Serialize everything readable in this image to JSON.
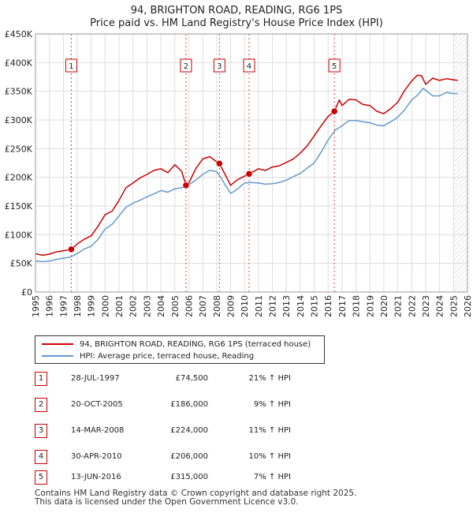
{
  "title_line1": "94, BRIGHTON ROAD, READING, RG6 1PS",
  "title_line2": "Price paid vs. HM Land Registry's House Price Index (HPI)",
  "chart_data": {
    "type": "line",
    "xlim": [
      1995,
      2026
    ],
    "ylim": [
      0,
      450000
    ],
    "y_ticks": [
      {
        "value": 0,
        "label": "£0"
      },
      {
        "value": 50000,
        "label": "£50K"
      },
      {
        "value": 100000,
        "label": "£100K"
      },
      {
        "value": 150000,
        "label": "£150K"
      },
      {
        "value": 200000,
        "label": "£200K"
      },
      {
        "value": 250000,
        "label": "£250K"
      },
      {
        "value": 300000,
        "label": "£300K"
      },
      {
        "value": 350000,
        "label": "£350K"
      },
      {
        "value": 400000,
        "label": "£400K"
      },
      {
        "value": 450000,
        "label": "£450K"
      }
    ],
    "x_ticks": [
      "1995",
      "1996",
      "1997",
      "1998",
      "1999",
      "2000",
      "2001",
      "2002",
      "2003",
      "2004",
      "2005",
      "2006",
      "2007",
      "2008",
      "2009",
      "2010",
      "2011",
      "2012",
      "2013",
      "2014",
      "2015",
      "2016",
      "2017",
      "2018",
      "2019",
      "2020",
      "2021",
      "2022",
      "2023",
      "2024",
      "2025",
      "2026"
    ],
    "grid": true,
    "series": [
      {
        "name": "94, BRIGHTON ROAD, READING, RG6 1PS (terraced house)",
        "color": "#cc0000",
        "x": [
          1995,
          1995.5,
          1996,
          1996.5,
          1997,
          1997.58,
          1998,
          1998.5,
          1999,
          1999.5,
          2000,
          2000.5,
          2001,
          2001.5,
          2002,
          2002.5,
          2003,
          2003.5,
          2004,
          2004.5,
          2005,
          2005.5,
          2005.8,
          2006,
          2006.5,
          2007,
          2007.5,
          2008,
          2008.2,
          2008.5,
          2009,
          2009.5,
          2010,
          2010.33,
          2010.8,
          2011,
          2011.5,
          2012,
          2012.5,
          2013,
          2013.5,
          2014,
          2014.5,
          2015,
          2015.5,
          2016,
          2016.45,
          2016.8,
          2017,
          2017.5,
          2018,
          2018.5,
          2019,
          2019.5,
          2020,
          2020.5,
          2021,
          2021.5,
          2022,
          2022.4,
          2022.7,
          2023,
          2023.5,
          2024,
          2024.5,
          2025,
          2025.3
        ],
        "values": [
          67000,
          64000,
          66000,
          70000,
          72000,
          74500,
          84000,
          92000,
          98000,
          115000,
          135000,
          141000,
          160000,
          182000,
          190000,
          199000,
          205000,
          212000,
          215000,
          208000,
          222000,
          210000,
          186000,
          190000,
          215000,
          232000,
          236000,
          227000,
          224000,
          210000,
          186000,
          196000,
          202000,
          206000,
          212000,
          215000,
          212000,
          218000,
          220000,
          226000,
          232000,
          242000,
          255000,
          272000,
          290000,
          306000,
          315000,
          335000,
          325000,
          336000,
          335000,
          327000,
          325000,
          315000,
          311000,
          320000,
          331000,
          352000,
          368000,
          378000,
          377000,
          362000,
          373000,
          369000,
          372000,
          370000,
          369000
        ]
      },
      {
        "name": "HPI: Average price, terraced house, Reading",
        "color": "#6699cc",
        "x": [
          1995,
          1995.5,
          1996,
          1996.5,
          1997,
          1997.5,
          1998,
          1998.5,
          1999,
          1999.5,
          2000,
          2000.5,
          2001,
          2001.5,
          2002,
          2002.5,
          2003,
          2003.5,
          2004,
          2004.5,
          2005,
          2005.5,
          2006,
          2006.5,
          2007,
          2007.5,
          2008,
          2008.3,
          2008.7,
          2009,
          2009.3,
          2009.7,
          2010,
          2010.5,
          2011,
          2011.5,
          2012,
          2012.5,
          2013,
          2013.5,
          2014,
          2014.5,
          2015,
          2015.5,
          2016,
          2016.5,
          2017,
          2017.5,
          2018,
          2018.5,
          2019,
          2019.5,
          2020,
          2020.5,
          2021,
          2021.5,
          2022,
          2022.5,
          2022.8,
          2023,
          2023.5,
          2024,
          2024.5,
          2025,
          2025.3
        ],
        "values": [
          54000,
          53000,
          54000,
          57000,
          59000,
          61000,
          67000,
          75000,
          80000,
          92000,
          110000,
          118000,
          133000,
          148000,
          155000,
          160000,
          166000,
          171000,
          177000,
          174000,
          180000,
          182000,
          187000,
          195000,
          205000,
          212000,
          210000,
          200000,
          183000,
          172000,
          176000,
          184000,
          190000,
          191000,
          190000,
          188000,
          189000,
          191000,
          195000,
          201000,
          207000,
          216000,
          225000,
          244000,
          265000,
          282000,
          290000,
          299000,
          299000,
          297000,
          295000,
          291000,
          290000,
          297000,
          305000,
          318000,
          335000,
          345000,
          355000,
          352000,
          342000,
          342000,
          348000,
          346000,
          346000
        ]
      }
    ],
    "sales": [
      {
        "num": "1",
        "date": "28-JUL-1997",
        "price": "£74,500",
        "pct": "21% ↑ HPI",
        "x": 1997.57,
        "value": 74500
      },
      {
        "num": "2",
        "date": "20-OCT-2005",
        "price": "£186,000",
        "pct": "9% ↑ HPI",
        "x": 2005.8,
        "value": 186000
      },
      {
        "num": "3",
        "date": "14-MAR-2008",
        "price": "£224,000",
        "pct": "11% ↑ HPI",
        "x": 2008.2,
        "value": 224000
      },
      {
        "num": "4",
        "date": "30-APR-2010",
        "price": "£206,000",
        "pct": "10% ↑ HPI",
        "x": 2010.33,
        "value": 206000
      },
      {
        "num": "5",
        "date": "13-JUN-2016",
        "price": "£315,000",
        "pct": "7% ↑ HPI",
        "x": 2016.45,
        "value": 315000
      }
    ],
    "forecast_from": 2025.0
  },
  "legend": {
    "property_label": "94, BRIGHTON ROAD, READING, RG6 1PS (terraced house)",
    "hpi_label": "HPI: Average price, terraced house, Reading"
  },
  "footer": {
    "line1": "Contains HM Land Registry data © Crown copyright and database right 2025.",
    "line2": "This data is licensed under the Open Government Licence v3.0."
  }
}
